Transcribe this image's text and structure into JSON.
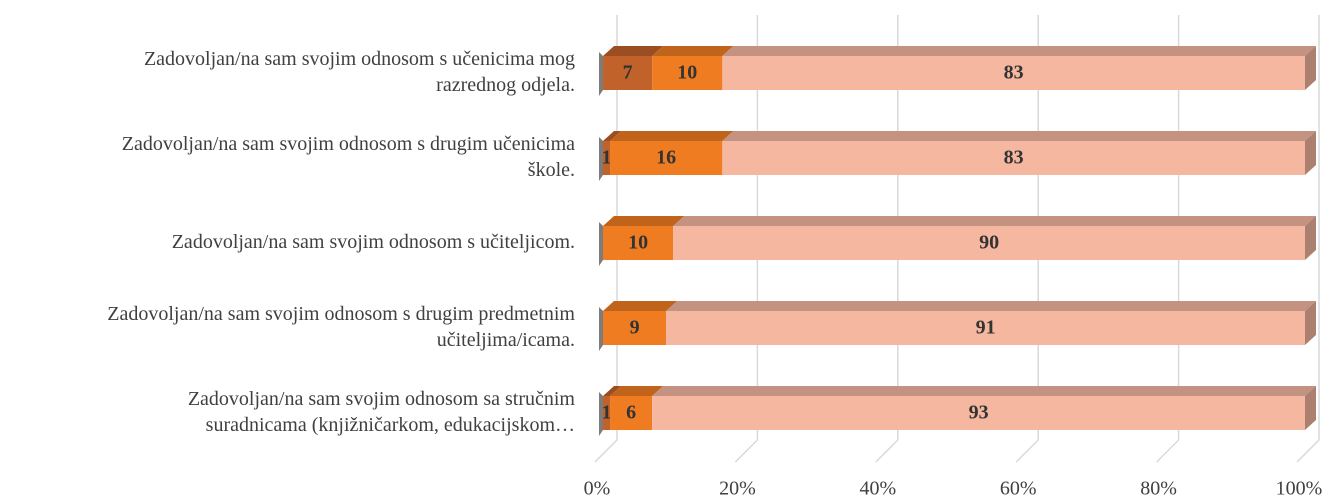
{
  "chart_data": {
    "type": "stacked-bar-horizontal",
    "categories": [
      [
        "Zadovoljan/na sam svojim odnosom s učenicima mog",
        "razrednog odjela."
      ],
      [
        "Zadovoljan/na sam svojim odnosom s drugim učenicima",
        "škole."
      ],
      [
        "Zadovoljan/na sam svojim odnosom s učiteljicom."
      ],
      [
        "Zadovoljan/na sam svojim odnosom s drugim predmetnim",
        "učiteljima/icama."
      ],
      [
        "Zadovoljan/na sam svojim odnosom sa stručnim",
        "suradnicama (knjižničarkom, edukacijskom…"
      ]
    ],
    "series": [
      {
        "color": "#c0622a",
        "values": [
          7,
          1,
          null,
          null,
          1
        ]
      },
      {
        "color": "#f07c22",
        "values": [
          10,
          16,
          10,
          9,
          6
        ]
      },
      {
        "color": "#f5b7a0",
        "values": [
          83,
          83,
          90,
          91,
          93
        ]
      }
    ],
    "xlim": [
      0,
      100
    ],
    "xticks": [
      {
        "value": 0,
        "label": "0%"
      },
      {
        "value": 20,
        "label": "20%"
      },
      {
        "value": 40,
        "label": "40%"
      },
      {
        "value": 60,
        "label": "60%"
      },
      {
        "value": 80,
        "label": "80%"
      },
      {
        "value": 100,
        "label": "100%"
      }
    ],
    "grid": true
  }
}
